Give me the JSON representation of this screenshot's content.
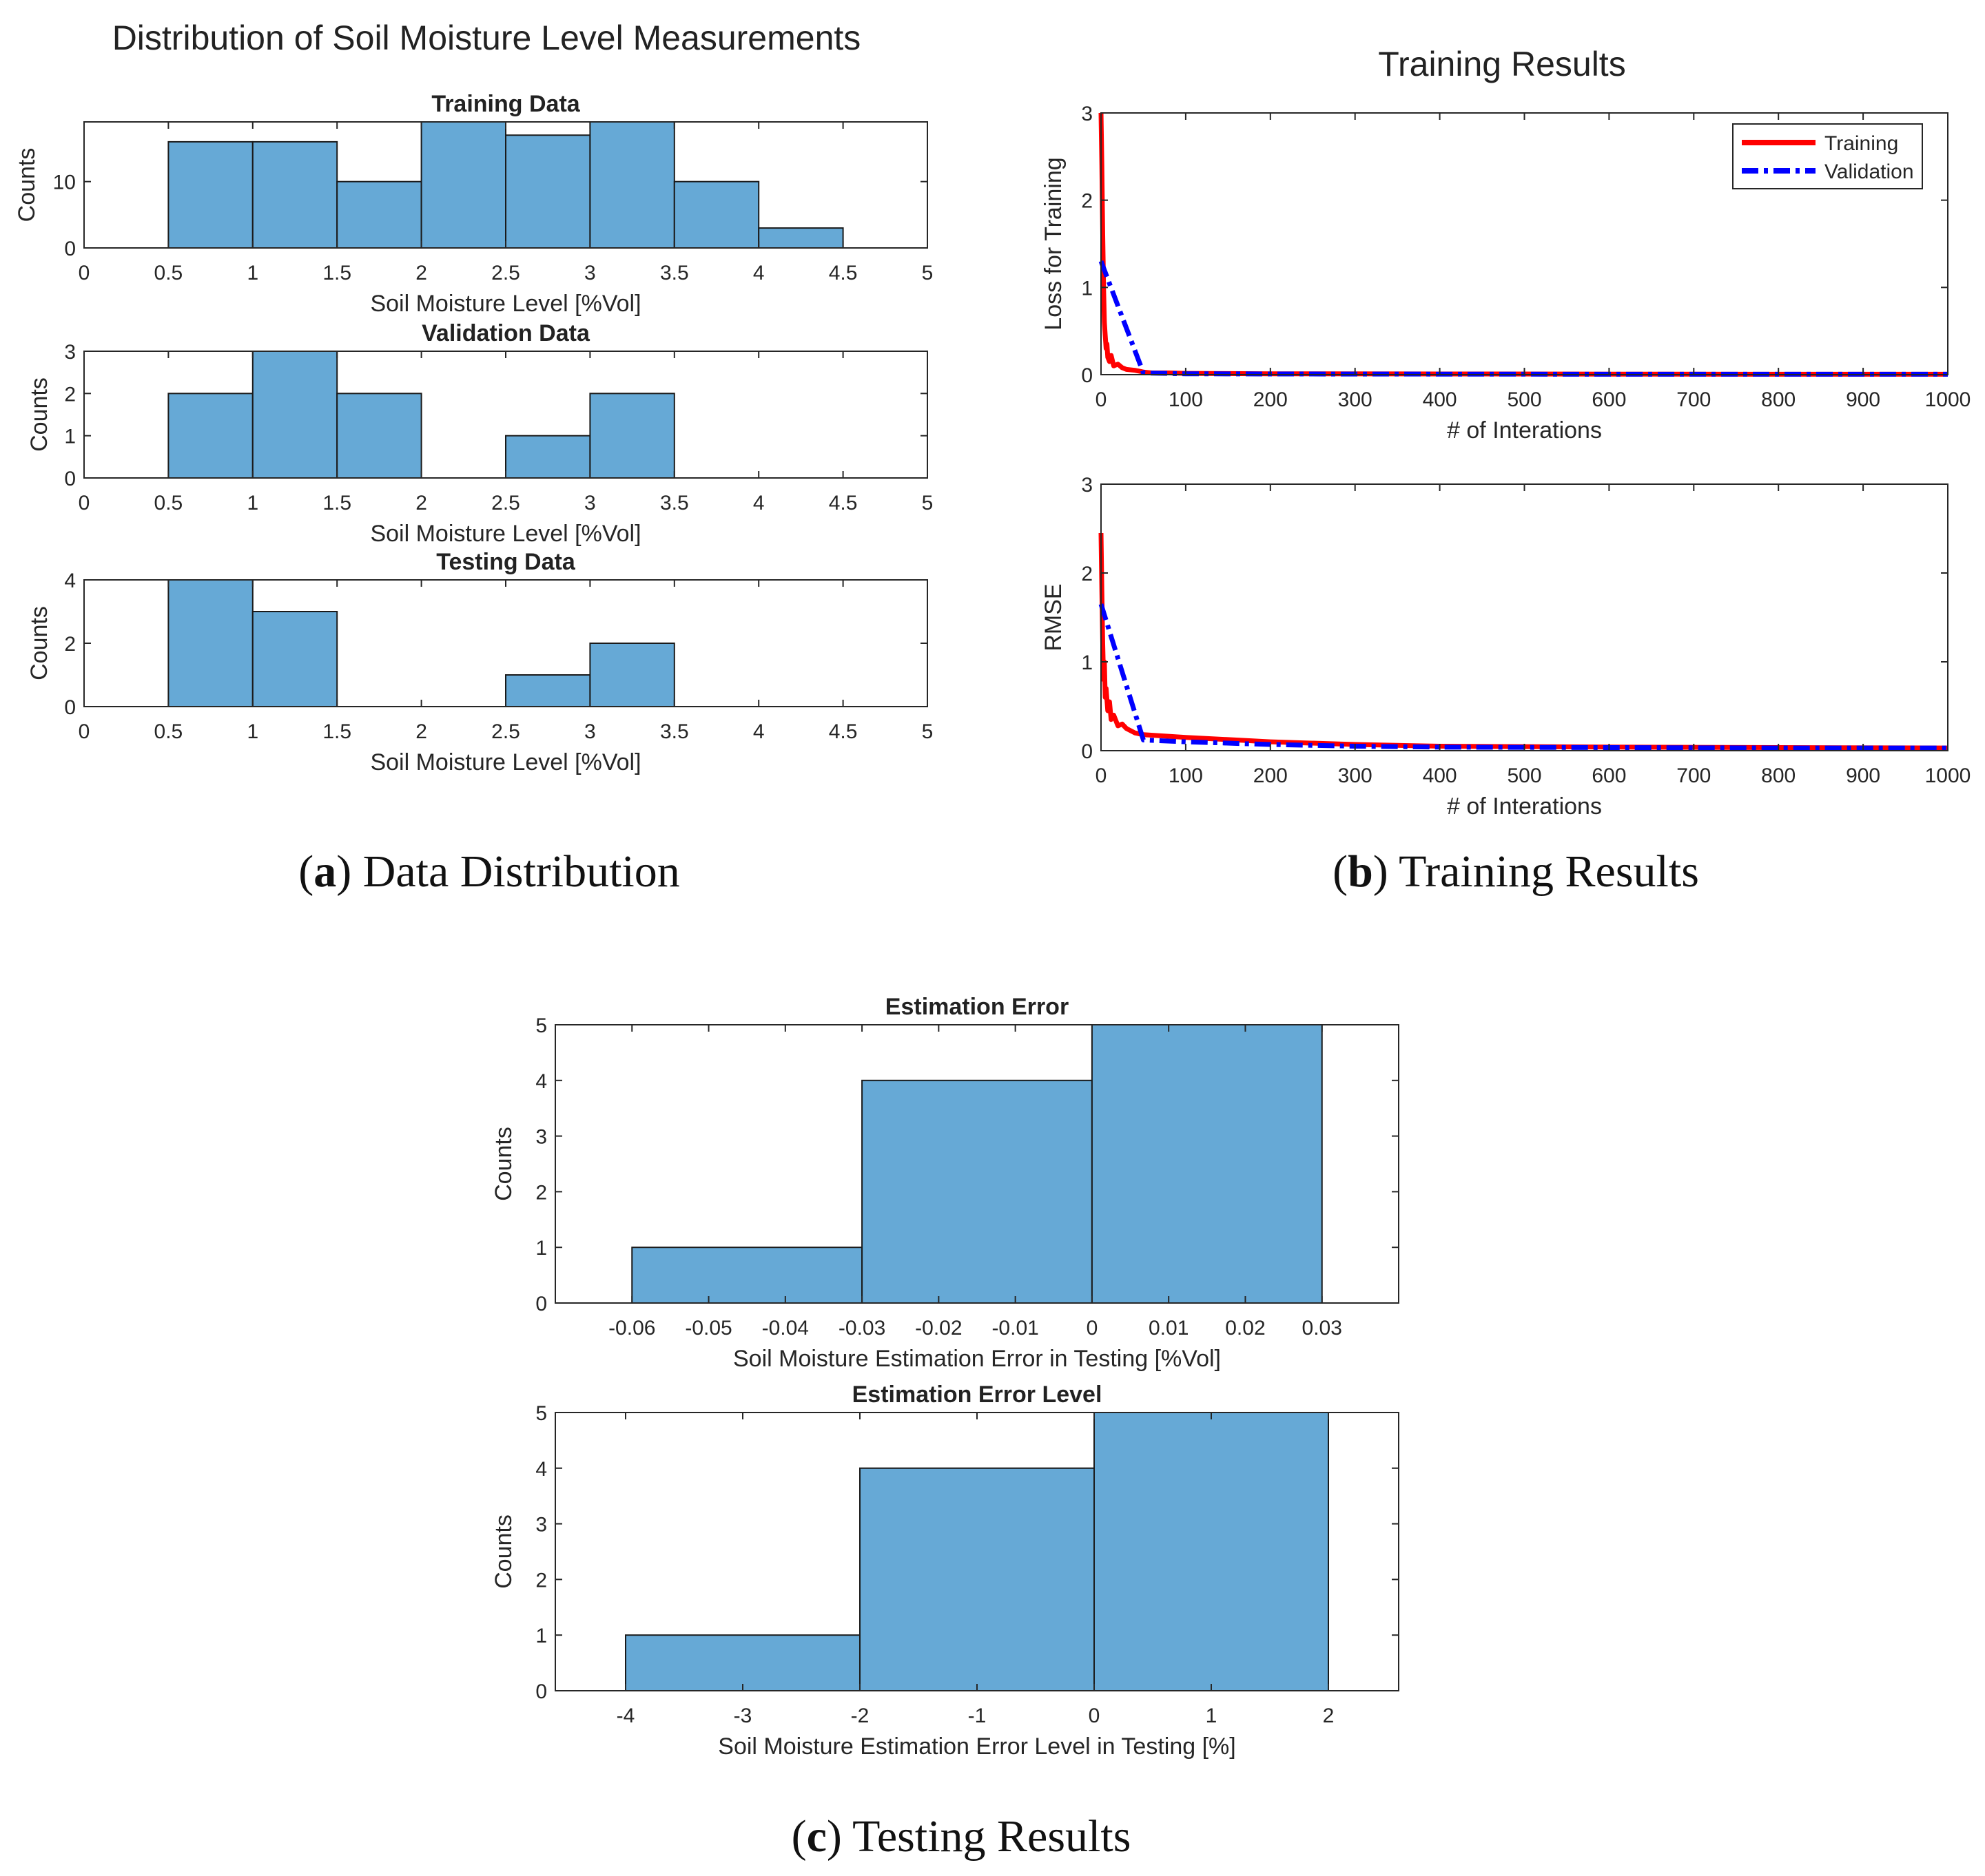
{
  "figure": {
    "caption_a": {
      "letter": "a",
      "text": "Data Distribution"
    },
    "caption_b": {
      "letter": "b",
      "text": "Training Results"
    },
    "caption_c": {
      "letter": "c",
      "text": "Testing Results"
    }
  },
  "colors": {
    "bar_fill": "#66a9d6",
    "bar_edge": "#1a1a1a",
    "training": "#ff0000",
    "validation": "#0000ff",
    "axes": "#262626"
  },
  "chart_data": [
    {
      "id": "dist",
      "type": "bar",
      "title": "Distribution of Soil Moisture Level Measurements",
      "panels": [
        {
          "id": "train",
          "title": "Training Data",
          "xlabel": "Soil Moisture Level [%Vol]",
          "ylabel": "Counts",
          "xlim": [
            0,
            5
          ],
          "ylim": [
            0,
            19
          ],
          "xticks": [
            0,
            0.5,
            1,
            1.5,
            2,
            2.5,
            3,
            3.5,
            4,
            4.5,
            5
          ],
          "xtick_labels": [
            "0",
            "0.5",
            "1",
            "1.5",
            "2",
            "2.5",
            "3",
            "3.5",
            "4",
            "4.5",
            "5"
          ],
          "yticks": [
            0,
            10
          ],
          "ytick_labels": [
            "0",
            "10"
          ],
          "bin_edges": [
            0.5,
            1,
            1.5,
            2,
            2.5,
            3,
            3.5,
            4,
            4.5
          ],
          "values": [
            16,
            16,
            10,
            19,
            17,
            19,
            10,
            3
          ]
        },
        {
          "id": "val",
          "title": "Validation Data",
          "xlabel": "Soil Moisture Level [%Vol]",
          "ylabel": "Counts",
          "xlim": [
            0,
            5
          ],
          "ylim": [
            0,
            3
          ],
          "xticks": [
            0,
            0.5,
            1,
            1.5,
            2,
            2.5,
            3,
            3.5,
            4,
            4.5,
            5
          ],
          "xtick_labels": [
            "0",
            "0.5",
            "1",
            "1.5",
            "2",
            "2.5",
            "3",
            "3.5",
            "4",
            "4.5",
            "5"
          ],
          "yticks": [
            0,
            1,
            2,
            3
          ],
          "ytick_labels": [
            "0",
            "1",
            "2",
            "3"
          ],
          "bin_edges": [
            0.5,
            1,
            1.5,
            2,
            2.5,
            3,
            3.5
          ],
          "values": [
            2,
            3,
            2,
            0,
            1,
            2
          ]
        },
        {
          "id": "test",
          "title": "Testing Data",
          "xlabel": "Soil Moisture Level [%Vol]",
          "ylabel": "Counts",
          "xlim": [
            0,
            5
          ],
          "ylim": [
            0,
            4
          ],
          "xticks": [
            0,
            0.5,
            1,
            1.5,
            2,
            2.5,
            3,
            3.5,
            4,
            4.5,
            5
          ],
          "xtick_labels": [
            "0",
            "0.5",
            "1",
            "1.5",
            "2",
            "2.5",
            "3",
            "3.5",
            "4",
            "4.5",
            "5"
          ],
          "yticks": [
            0,
            2,
            4
          ],
          "ytick_labels": [
            "0",
            "2",
            "4"
          ],
          "bin_edges": [
            0.5,
            1,
            1.5,
            2,
            2.5,
            3,
            3.5
          ],
          "values": [
            4,
            3,
            0,
            0,
            1,
            2
          ]
        }
      ]
    },
    {
      "id": "train_results",
      "type": "line",
      "title": "Training Results",
      "legend": {
        "position": "top-right",
        "entries": [
          "Training",
          "Validation"
        ]
      },
      "panels": [
        {
          "id": "loss",
          "title": "",
          "xlabel": "# of Interations",
          "ylabel": "Loss for Training",
          "xlim": [
            0,
            1000
          ],
          "ylim": [
            0,
            3
          ],
          "xticks": [
            0,
            100,
            200,
            300,
            400,
            500,
            600,
            700,
            800,
            900,
            1000
          ],
          "xtick_labels": [
            "0",
            "100",
            "200",
            "300",
            "400",
            "500",
            "600",
            "700",
            "800",
            "900",
            "1000"
          ],
          "yticks": [
            0,
            1,
            2,
            3
          ],
          "ytick_labels": [
            "0",
            "1",
            "2",
            "3"
          ],
          "series": [
            {
              "name": "Training",
              "x": [
                0,
                1,
                2,
                3,
                4,
                5,
                6,
                7,
                8,
                10,
                12,
                15,
                20,
                25,
                30,
                40,
                50,
                60,
                80,
                100,
                200,
                400,
                600,
                800,
                1000
              ],
              "y": [
                3.0,
                2.4,
                1.6,
                1.0,
                0.6,
                0.45,
                0.3,
                0.35,
                0.2,
                0.15,
                0.22,
                0.1,
                0.12,
                0.08,
                0.06,
                0.05,
                0.03,
                0.02,
                0.02,
                0.015,
                0.01,
                0.008,
                0.006,
                0.005,
                0.005
              ]
            },
            {
              "name": "Validation",
              "x": [
                0,
                50,
                100,
                200,
                400,
                600,
                800,
                1000
              ],
              "y": [
                1.3,
                0.02,
                0.01,
                0.008,
                0.006,
                0.005,
                0.005,
                0.005
              ]
            }
          ]
        },
        {
          "id": "rmse",
          "title": "",
          "xlabel": "# of Interations",
          "ylabel": "RMSE",
          "xlim": [
            0,
            1000
          ],
          "ylim": [
            0,
            3
          ],
          "xticks": [
            0,
            100,
            200,
            300,
            400,
            500,
            600,
            700,
            800,
            900,
            1000
          ],
          "xtick_labels": [
            "0",
            "100",
            "200",
            "300",
            "400",
            "500",
            "600",
            "700",
            "800",
            "900",
            "1000"
          ],
          "yticks": [
            0,
            1,
            2,
            3
          ],
          "ytick_labels": [
            "0",
            "1",
            "2",
            "3"
          ],
          "series": [
            {
              "name": "Training",
              "x": [
                0,
                1,
                2,
                3,
                4,
                5,
                6,
                8,
                10,
                12,
                15,
                20,
                25,
                30,
                40,
                50,
                100,
                200,
                300,
                400,
                600,
                800,
                1000
              ],
              "y": [
                2.45,
                1.8,
                1.2,
                0.8,
                1.0,
                0.6,
                0.7,
                0.45,
                0.55,
                0.35,
                0.4,
                0.28,
                0.3,
                0.25,
                0.2,
                0.18,
                0.15,
                0.1,
                0.07,
                0.05,
                0.04,
                0.035,
                0.03
              ]
            },
            {
              "name": "Validation",
              "x": [
                0,
                50,
                100,
                200,
                300,
                400,
                600,
                800,
                1000
              ],
              "y": [
                1.65,
                0.12,
                0.1,
                0.07,
                0.05,
                0.04,
                0.035,
                0.03,
                0.03
              ]
            }
          ]
        }
      ]
    },
    {
      "id": "testing_results",
      "type": "bar",
      "panels": [
        {
          "id": "err",
          "title": "Estimation Error",
          "xlabel": "Soil Moisture Estimation Error in Testing [%Vol]",
          "ylabel": "Counts",
          "xlim": [
            -0.07,
            0.04
          ],
          "ylim": [
            0,
            5
          ],
          "xticks": [
            -0.06,
            -0.05,
            -0.04,
            -0.03,
            -0.02,
            -0.01,
            0,
            0.01,
            0.02,
            0.03
          ],
          "xtick_labels": [
            "-0.06",
            "-0.05",
            "-0.04",
            "-0.03",
            "-0.02",
            "-0.01",
            "0",
            "0.01",
            "0.02",
            "0.03"
          ],
          "yticks": [
            0,
            1,
            2,
            3,
            4,
            5
          ],
          "ytick_labels": [
            "0",
            "1",
            "2",
            "3",
            "4",
            "5"
          ],
          "bin_edges": [
            -0.06,
            -0.03,
            0,
            0.03
          ],
          "values": [
            1,
            4,
            5
          ]
        },
        {
          "id": "errlev",
          "title": "Estimation Error Level",
          "xlabel": "Soil Moisture Estimation Error Level in Testing [%]",
          "ylabel": "Counts",
          "xlim": [
            -4.6,
            2.6
          ],
          "ylim": [
            0,
            5
          ],
          "xticks": [
            -4,
            -3,
            -2,
            -1,
            0,
            1,
            2
          ],
          "xtick_labels": [
            "-4",
            "-3",
            "-2",
            "-1",
            "0",
            "1",
            "2"
          ],
          "yticks": [
            0,
            1,
            2,
            3,
            4,
            5
          ],
          "ytick_labels": [
            "0",
            "1",
            "2",
            "3",
            "4",
            "5"
          ],
          "bin_edges": [
            -4,
            -2,
            0,
            2
          ],
          "values": [
            1,
            4,
            5
          ]
        }
      ]
    }
  ]
}
